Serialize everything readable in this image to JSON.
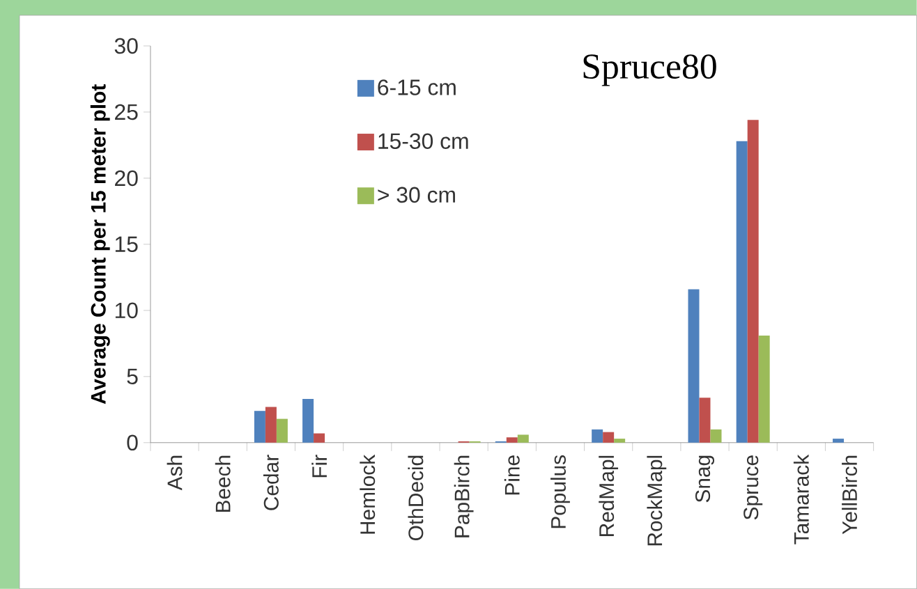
{
  "chart_data": {
    "type": "bar",
    "title": "Spruce80",
    "ylabel": "Average Count per 15 meter plot",
    "categories": [
      "Ash",
      "Beech",
      "Cedar",
      "Fir",
      "Hemlock",
      "OthDecid",
      "PapBirch",
      "Pine",
      "Populus",
      "RedMapl",
      "RockMapl",
      "Snag",
      "Spruce",
      "Tamarack",
      "YellBirch"
    ],
    "series": [
      {
        "name": "6-15 cm",
        "color": "#4f81bd",
        "values": [
          0,
          0,
          2.4,
          3.3,
          0,
          0,
          0,
          0.1,
          0,
          1.0,
          0,
          11.6,
          22.8,
          0,
          0.3
        ]
      },
      {
        "name": "15-30 cm",
        "color": "#c0504d",
        "values": [
          0,
          0,
          2.7,
          0.7,
          0,
          0,
          0.1,
          0.4,
          0,
          0.8,
          0,
          3.4,
          24.4,
          0,
          0
        ]
      },
      {
        "name": "> 30 cm",
        "color": "#9bbb59",
        "values": [
          0,
          0,
          1.8,
          0,
          0,
          0,
          0.1,
          0.6,
          0,
          0.3,
          0,
          1.0,
          8.1,
          0,
          0
        ]
      }
    ],
    "ylim": [
      0,
      30
    ],
    "yticks": [
      0,
      5,
      10,
      15,
      20,
      25,
      30
    ],
    "grid": false,
    "legend": "top"
  }
}
